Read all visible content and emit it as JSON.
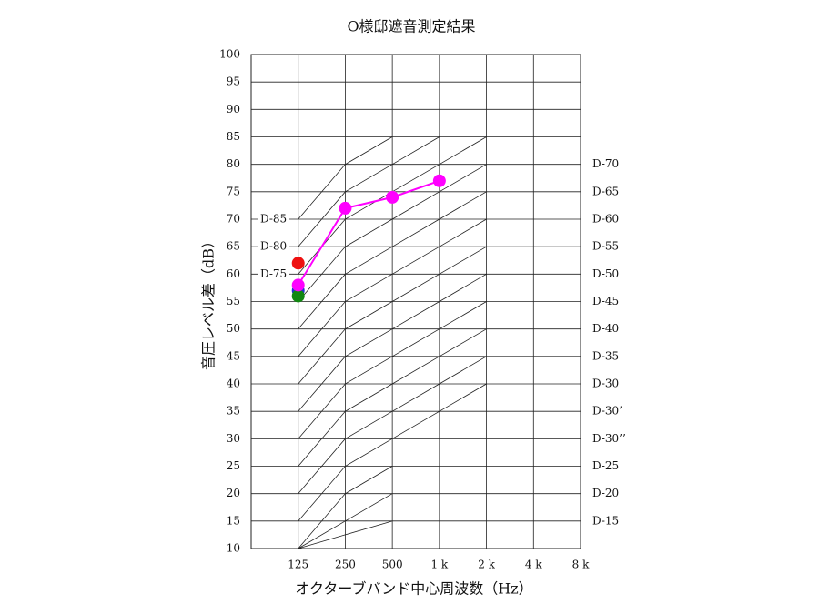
{
  "chart_data": {
    "type": "line",
    "title": "O様邸遮音測定結果",
    "ylabel": "音圧レベル差（dB）",
    "xlabel": "オクターブバンド中心周波数（Hz）",
    "categories": [
      null,
      "125",
      "250",
      "500",
      "1 k",
      "2 k",
      "4 k",
      "8 k"
    ],
    "ylim": [
      10,
      100
    ],
    "yticks": [
      10,
      15,
      20,
      25,
      30,
      35,
      40,
      45,
      50,
      55,
      60,
      65,
      70,
      75,
      80,
      85,
      90,
      95,
      100
    ],
    "grid": true,
    "series": [
      {
        "color": "#ee1111",
        "values": [
          null,
          62,
          null,
          null,
          null,
          null,
          null,
          null
        ]
      },
      {
        "color": "#2233cc",
        "values": [
          null,
          57,
          null,
          null,
          null,
          null,
          null,
          null
        ]
      },
      {
        "color": "#118811",
        "values": [
          null,
          56,
          null,
          null,
          null,
          null,
          null,
          null
        ]
      },
      {
        "color": "#ff00ff",
        "values": [
          null,
          58,
          72,
          74,
          77,
          null,
          null,
          null
        ]
      }
    ],
    "reference_curves": [
      [
        null,
        10,
        12.5,
        15,
        null,
        null,
        null,
        null
      ],
      [
        null,
        10,
        15,
        20,
        null,
        null,
        null,
        null
      ],
      [
        null,
        10,
        20,
        25,
        null,
        null,
        null,
        null
      ],
      [
        null,
        15,
        25,
        30,
        35,
        40,
        null,
        null
      ],
      [
        null,
        20,
        30,
        35,
        40,
        45,
        null,
        null
      ],
      [
        null,
        25,
        35,
        40,
        45,
        50,
        null,
        null
      ],
      [
        null,
        30,
        40,
        45,
        50,
        55,
        null,
        null
      ],
      [
        null,
        35,
        45,
        50,
        55,
        60,
        null,
        null
      ],
      [
        null,
        40,
        50,
        55,
        60,
        65,
        null,
        null
      ],
      [
        null,
        45,
        55,
        60,
        65,
        70,
        null,
        null
      ],
      [
        null,
        50,
        60,
        65,
        70,
        75,
        null,
        null
      ],
      [
        null,
        55,
        65,
        70,
        75,
        80,
        null,
        null
      ],
      [
        null,
        60,
        70,
        75,
        80,
        85,
        null,
        null
      ],
      [
        null,
        65,
        75,
        80,
        85,
        null,
        null,
        null
      ],
      [
        null,
        70,
        80,
        85,
        null,
        null,
        null,
        null
      ]
    ],
    "left_labels": [
      {
        "value": 70,
        "label": "D-85"
      },
      {
        "value": 65,
        "label": "D-80"
      },
      {
        "value": 60,
        "label": "D-75"
      }
    ],
    "right_labels": [
      {
        "value": 80,
        "label": "D-70"
      },
      {
        "value": 75,
        "label": "D-65"
      },
      {
        "value": 70,
        "label": "D-60"
      },
      {
        "value": 65,
        "label": "D-55"
      },
      {
        "value": 60,
        "label": "D-50"
      },
      {
        "value": 55,
        "label": "D-45"
      },
      {
        "value": 50,
        "label": "D-40"
      },
      {
        "value": 45,
        "label": "D-35"
      },
      {
        "value": 40,
        "label": "D-30"
      },
      {
        "value": 35,
        "label": "D-30’"
      },
      {
        "value": 30,
        "label": "D-30’’"
      },
      {
        "value": 25,
        "label": "D-25"
      },
      {
        "value": 20,
        "label": "D-20"
      },
      {
        "value": 15,
        "label": "D-15"
      }
    ]
  }
}
